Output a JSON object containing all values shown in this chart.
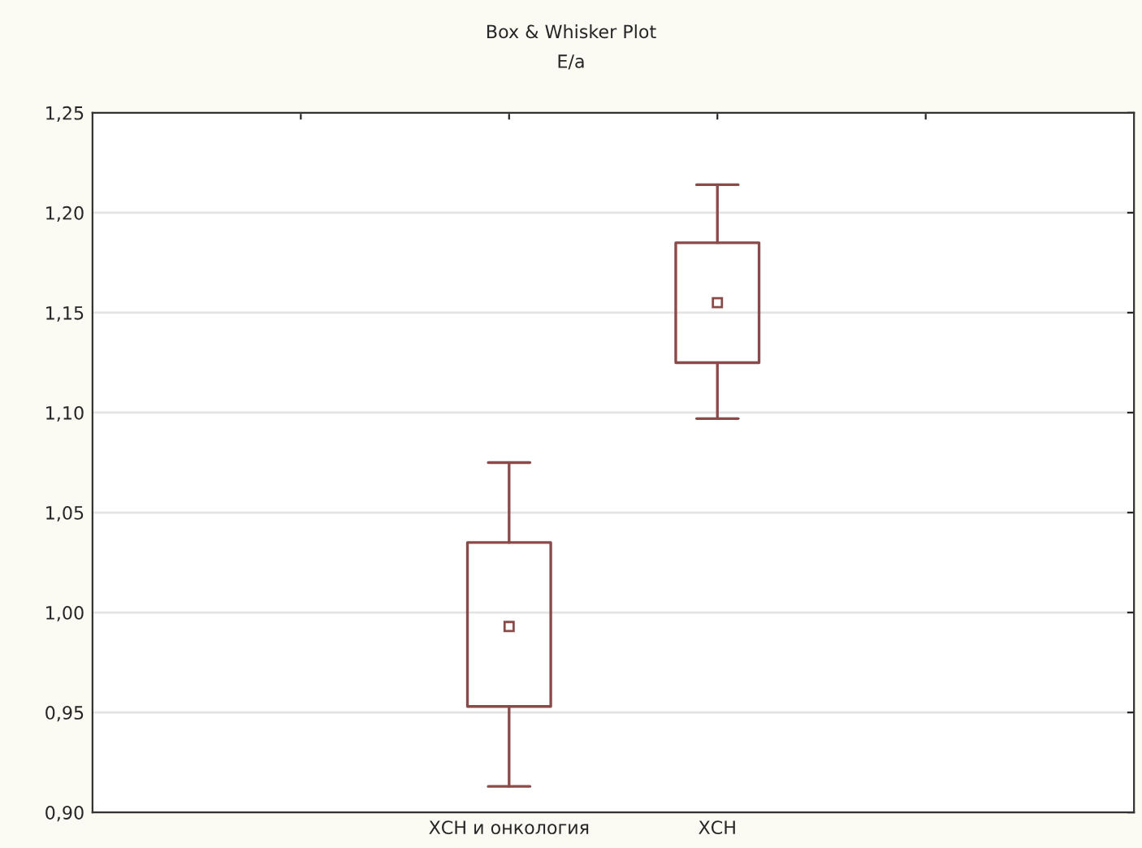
{
  "chart_data": {
    "type": "box",
    "title": "Box & Whisker Plot",
    "subtitle": "E/a",
    "categories": [
      null,
      "ХСН и онкология",
      "ХСН",
      null
    ],
    "boxes": [
      null,
      {
        "low": 0.913,
        "q1": 0.953,
        "median": 0.993,
        "q3": 1.035,
        "high": 1.075
      },
      {
        "low": 1.097,
        "q1": 1.125,
        "median": 1.155,
        "q3": 1.185,
        "high": 1.214
      },
      null
    ],
    "color": "#8b4a4a",
    "ylim": [
      0.9,
      1.25
    ],
    "yticks": [
      {
        "value": 0.9,
        "label": "0,90"
      },
      {
        "value": 0.95,
        "label": "0,95"
      },
      {
        "value": 1.0,
        "label": "1,00"
      },
      {
        "value": 1.05,
        "label": "1,05"
      },
      {
        "value": 1.1,
        "label": "1,10"
      },
      {
        "value": 1.15,
        "label": "1,15"
      },
      {
        "value": 1.2,
        "label": "1,20"
      },
      {
        "value": 1.25,
        "label": "1,25"
      }
    ],
    "grid": "y",
    "marker": "square"
  }
}
